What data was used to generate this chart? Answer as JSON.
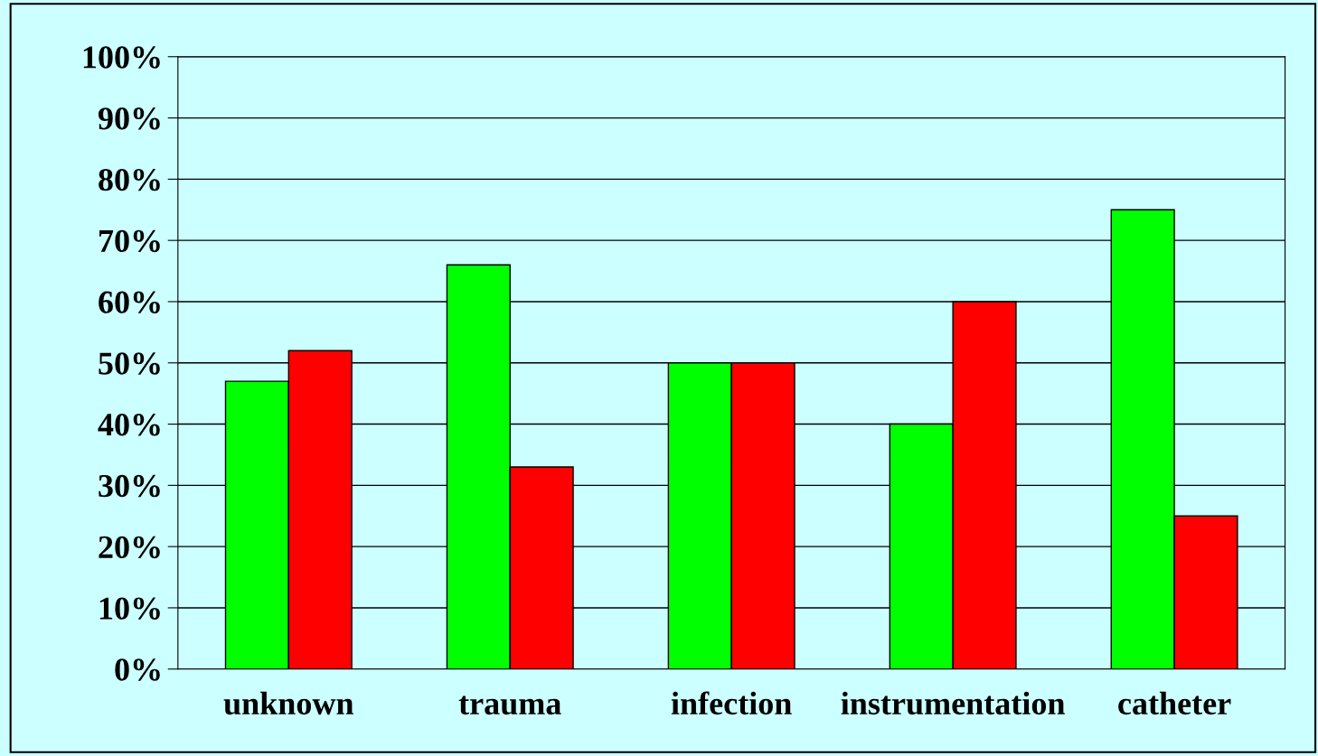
{
  "chart_data": {
    "type": "bar",
    "categories": [
      "unknown",
      "trauma",
      "infection",
      "instrumentation",
      "catheter"
    ],
    "series": [
      {
        "color": "#00ff00",
        "values": [
          47,
          66,
          50,
          40,
          75
        ]
      },
      {
        "color": "#ff0000",
        "values": [
          52,
          33,
          50,
          60,
          25
        ]
      }
    ],
    "ylim": [
      0,
      100
    ],
    "yticks": [
      {
        "value": 0,
        "label": "0%"
      },
      {
        "value": 10,
        "label": "10%"
      },
      {
        "value": 20,
        "label": "20%"
      },
      {
        "value": 30,
        "label": "30%"
      },
      {
        "value": 40,
        "label": "40%"
      },
      {
        "value": 50,
        "label": "50%"
      },
      {
        "value": 60,
        "label": "60%"
      },
      {
        "value": 70,
        "label": "70%"
      },
      {
        "value": 80,
        "label": "80%"
      },
      {
        "value": 90,
        "label": "90%"
      },
      {
        "value": 100,
        "label": "100%"
      }
    ],
    "grid": "y",
    "legend": false
  }
}
